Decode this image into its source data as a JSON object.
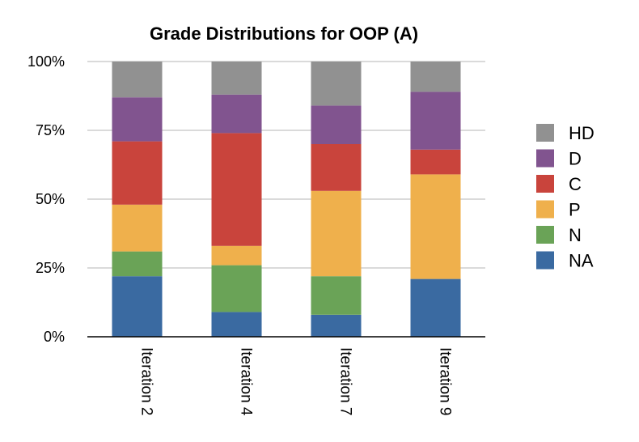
{
  "chart_data": {
    "type": "bar",
    "stacked": true,
    "title": "Grade Distributions for OOP (A)",
    "xlabel": "",
    "ylabel": "",
    "ylim": [
      0,
      100
    ],
    "y_ticks": [
      "0%",
      "25%",
      "50%",
      "75%",
      "100%"
    ],
    "y_tick_values": [
      0,
      25,
      50,
      75,
      100
    ],
    "grid": true,
    "legend_position": "right",
    "categories": [
      "Iteration 2",
      "Iteration 4",
      "Iteration 7",
      "Iteration 9"
    ],
    "series": [
      {
        "name": "NA",
        "color": "#3a6aa1",
        "values": [
          22,
          9,
          8,
          21
        ]
      },
      {
        "name": "N",
        "color": "#6aa357",
        "values": [
          9,
          17,
          14,
          0
        ]
      },
      {
        "name": "P",
        "color": "#efb04c",
        "values": [
          17,
          7,
          31,
          38
        ]
      },
      {
        "name": "C",
        "color": "#c9443c",
        "values": [
          23,
          41,
          17,
          9
        ]
      },
      {
        "name": "D",
        "color": "#81548f",
        "values": [
          16,
          14,
          14,
          21
        ]
      },
      {
        "name": "HD",
        "color": "#919191",
        "values": [
          13,
          12,
          16,
          11
        ]
      }
    ]
  }
}
